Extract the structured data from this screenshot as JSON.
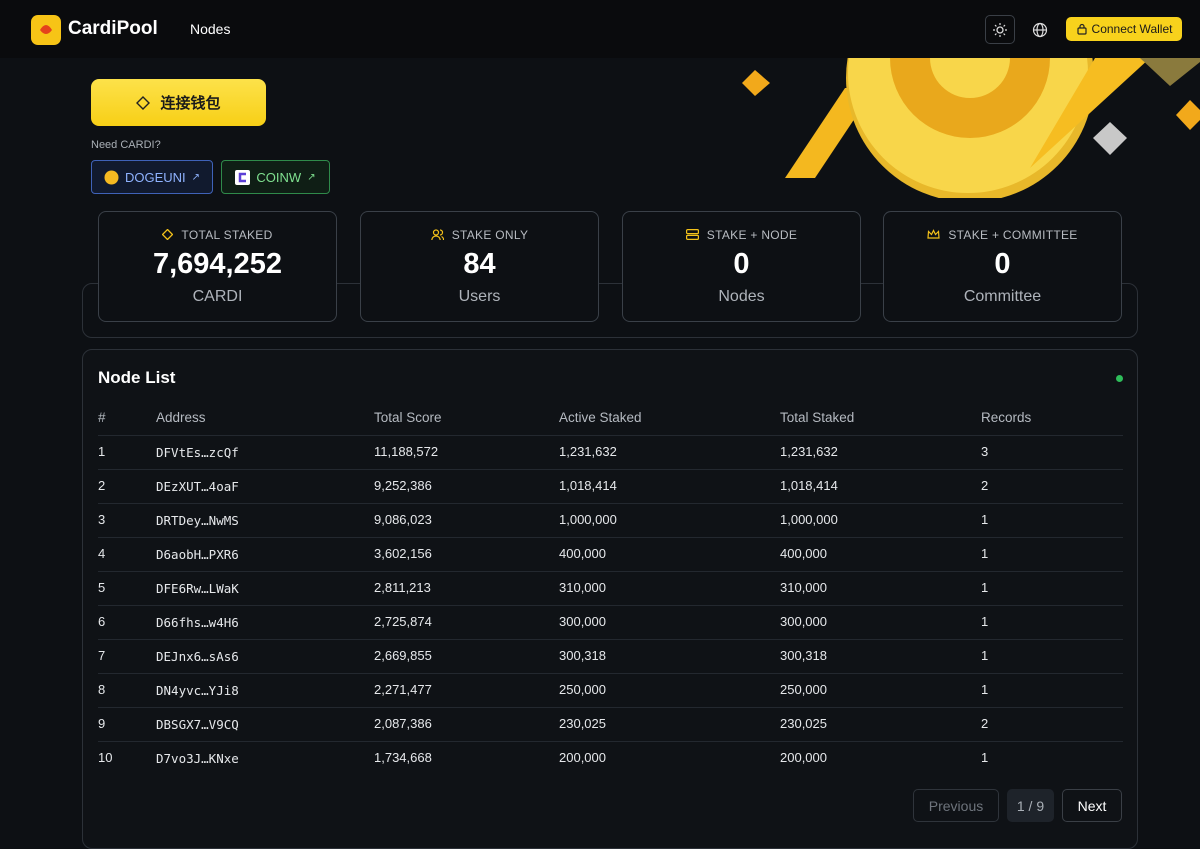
{
  "header": {
    "brand": "CardiPool",
    "nav": [
      "Nodes"
    ],
    "connect": "Connect Wallet"
  },
  "hero": {
    "button": "连接钱包",
    "need": "Need CARDI?",
    "links": [
      "DOGEUNI",
      "COINW"
    ]
  },
  "stats": [
    {
      "label": "TOTAL STAKED",
      "value": "7,694,252",
      "unit": "CARDI"
    },
    {
      "label": "STAKE ONLY",
      "value": "84",
      "unit": "Users"
    },
    {
      "label": "STAKE + NODE",
      "value": "0",
      "unit": "Nodes"
    },
    {
      "label": "STAKE + COMMITTEE",
      "value": "0",
      "unit": "Committee"
    }
  ],
  "table": {
    "title": "Node List",
    "columns": [
      "#",
      "Address",
      "Total Score",
      "Active Staked",
      "Total Staked",
      "Records"
    ],
    "rows": [
      [
        "1",
        "DFVtEs…zcQf",
        "11,188,572",
        "1,231,632",
        "1,231,632",
        "3"
      ],
      [
        "2",
        "DEzXUT…4oaF",
        "9,252,386",
        "1,018,414",
        "1,018,414",
        "2"
      ],
      [
        "3",
        "DRTDey…NwMS",
        "9,086,023",
        "1,000,000",
        "1,000,000",
        "1"
      ],
      [
        "4",
        "D6aobH…PXR6",
        "3,602,156",
        "400,000",
        "400,000",
        "1"
      ],
      [
        "5",
        "DFE6Rw…LWaK",
        "2,811,213",
        "310,000",
        "310,000",
        "1"
      ],
      [
        "6",
        "D66fhs…w4H6",
        "2,725,874",
        "300,000",
        "300,000",
        "1"
      ],
      [
        "7",
        "DEJnx6…sAs6",
        "2,669,855",
        "300,318",
        "300,318",
        "1"
      ],
      [
        "8",
        "DN4yvc…YJi8",
        "2,271,477",
        "250,000",
        "250,000",
        "1"
      ],
      [
        "9",
        "DBSGX7…V9CQ",
        "2,087,386",
        "230,025",
        "230,025",
        "2"
      ],
      [
        "10",
        "D7vo3J…KNxe",
        "1,734,668",
        "200,000",
        "200,000",
        "1"
      ]
    ]
  },
  "pagination": {
    "previous": "Previous",
    "page": "1 / 9",
    "next": "Next"
  }
}
